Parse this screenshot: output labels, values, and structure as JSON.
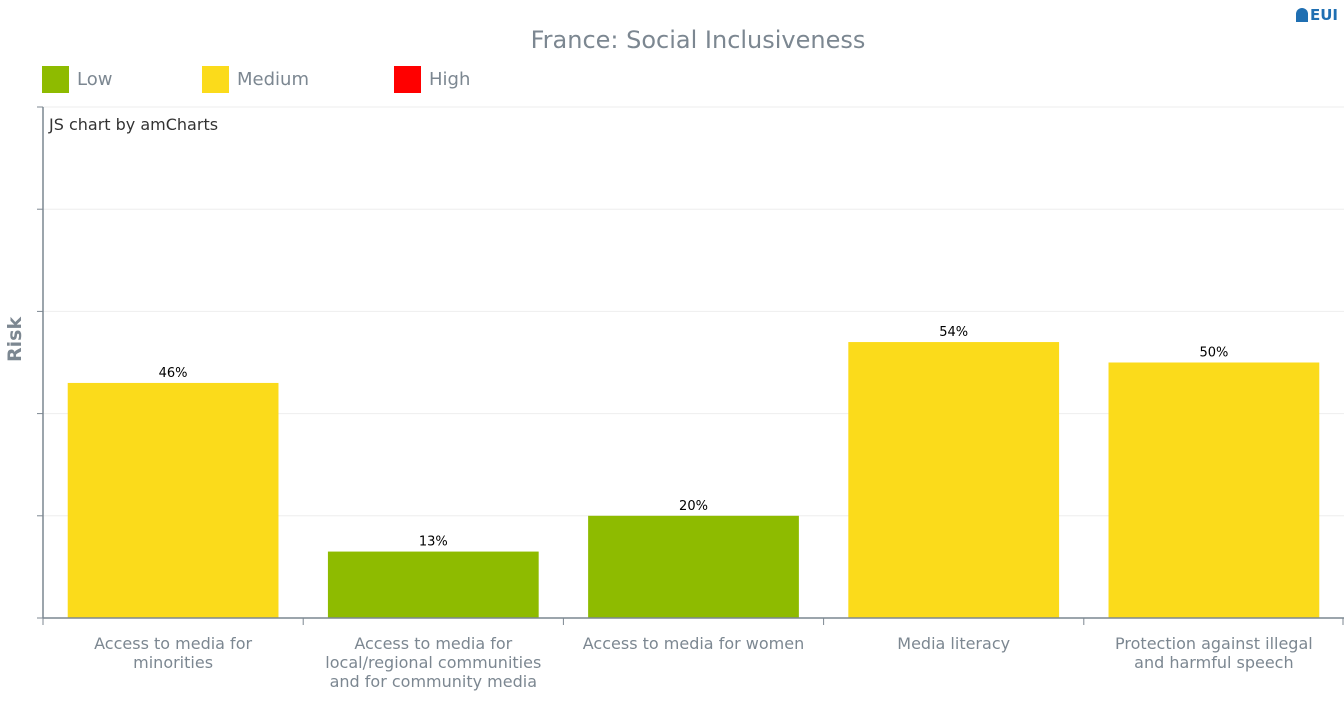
{
  "chart_data": {
    "type": "bar",
    "title": "France: Social Inclusiveness",
    "ylabel": "Risk",
    "xlabel": "",
    "ylim": [
      0,
      100
    ],
    "grid": true,
    "legend_position": "top-left",
    "legend": [
      {
        "label": "Low",
        "color": "#8ebb00"
      },
      {
        "label": "Medium",
        "color": "#fbdb1b"
      },
      {
        "label": "High",
        "color": "#ff0000"
      }
    ],
    "categories": [
      "Access to media for minorities",
      "Access to media for local/regional communities and for community media",
      "Access to media for women",
      "Media literacy",
      "Protection against illegal and harmful speech"
    ],
    "values": [
      46,
      13,
      20,
      54,
      50
    ],
    "value_labels": [
      "46%",
      "13%",
      "20%",
      "54%",
      "50%"
    ],
    "risk_levels": [
      "Medium",
      "Low",
      "Low",
      "Medium",
      "Medium"
    ]
  },
  "colors": {
    "low": "#8ebb00",
    "medium": "#fbdb1b",
    "high": "#ff0000",
    "axis": "#7c8791",
    "title": "#7c8791"
  },
  "credit": "JS chart by amCharts",
  "logo": {
    "text": "EUI",
    "icon": "eui-shield-icon"
  }
}
